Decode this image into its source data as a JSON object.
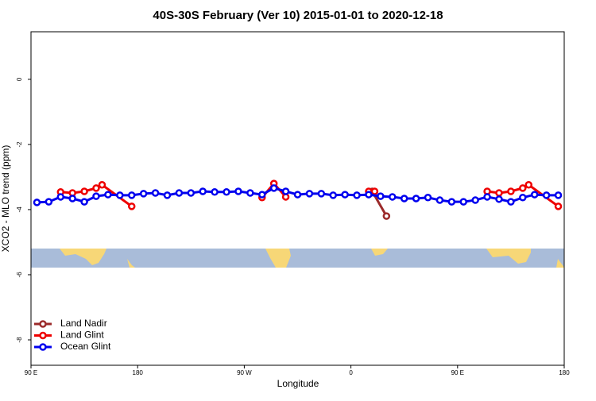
{
  "chart_data": {
    "type": "line",
    "title": "40S-30S February (Ver 10)   2015-01-01 to 2020-12-18",
    "x_label": "Longitude",
    "y_label": "XCO2 - MLO trend (ppm)",
    "xlim": [
      90,
      540
    ],
    "xticks": [
      {
        "value": 90,
        "label": "90 E"
      },
      {
        "value": 180,
        "label": "180"
      },
      {
        "value": 270,
        "label": "90 W"
      },
      {
        "value": 360,
        "label": "0"
      },
      {
        "value": 450,
        "label": "90 E"
      },
      {
        "value": 540,
        "label": "180"
      }
    ],
    "ylim": [
      -8.78,
      1.46
    ],
    "yticks": [
      0,
      -2,
      -4,
      -6,
      -8
    ],
    "legend": "bottom-left",
    "series": [
      {
        "name": "Land Nadir",
        "color": "#9b2a2a",
        "x": [
          378,
          390
        ],
        "values": [
          -3.44,
          -4.2
        ]
      },
      {
        "name": "Land Glint",
        "color": "#ee0000",
        "x": [
          115,
          125,
          135,
          145,
          150,
          175,
          230,
          285,
          295,
          305,
          340,
          375,
          380,
          430,
          475,
          485,
          495,
          505,
          510,
          535
        ],
        "values": [
          -3.46,
          -3.49,
          -3.44,
          -3.34,
          -3.24,
          -3.9,
          null,
          -3.63,
          -3.2,
          -3.61,
          null,
          -3.44,
          -3.44,
          null,
          -3.44,
          -3.49,
          -3.44,
          -3.34,
          -3.24,
          -3.9
        ]
      },
      {
        "name": "Ocean Glint",
        "color": "#0000ee",
        "x": [
          95,
          105,
          115,
          125,
          135,
          145,
          155,
          165,
          175,
          185,
          195,
          205,
          215,
          225,
          235,
          245,
          255,
          265,
          275,
          285,
          295,
          305,
          315,
          325,
          335,
          345,
          355,
          365,
          375,
          385,
          395,
          405,
          415,
          425,
          435,
          445,
          455,
          465,
          475,
          485,
          495,
          505,
          515,
          525,
          535
        ],
        "values": [
          -3.78,
          -3.76,
          -3.61,
          -3.66,
          -3.76,
          -3.59,
          -3.54,
          -3.56,
          -3.56,
          -3.51,
          -3.49,
          -3.56,
          -3.49,
          -3.49,
          -3.44,
          -3.46,
          -3.46,
          -3.44,
          -3.49,
          -3.54,
          -3.34,
          -3.44,
          -3.54,
          -3.51,
          -3.51,
          -3.56,
          -3.54,
          -3.56,
          -3.54,
          -3.59,
          -3.61,
          -3.66,
          -3.66,
          -3.63,
          -3.71,
          -3.76,
          -3.76,
          -3.71,
          -3.61,
          -3.68,
          -3.76,
          -3.63,
          -3.54,
          -3.56,
          -3.56
        ]
      }
    ]
  }
}
